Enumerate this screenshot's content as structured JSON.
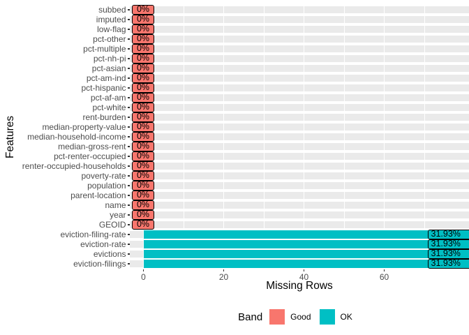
{
  "chart_data": {
    "type": "bar",
    "orientation": "horizontal",
    "xlabel": "Missing Rows",
    "ylabel": "Features",
    "x_ticks": [
      0,
      20,
      40,
      60
    ],
    "gridline_values": [
      0,
      10,
      20,
      30,
      40,
      50,
      60,
      70
    ],
    "xlim": [
      -3.6,
      81.1
    ],
    "grid": true,
    "legend": {
      "title": "Band",
      "position": "bottom",
      "entries": [
        {
          "label": "Good",
          "color": "#F8766D"
        },
        {
          "label": "OK",
          "color": "#00BFC4"
        }
      ]
    },
    "rows": [
      {
        "feature": "subbed",
        "band": "Good",
        "value": 0,
        "label": "0%"
      },
      {
        "feature": "imputed",
        "band": "Good",
        "value": 0,
        "label": "0%"
      },
      {
        "feature": "low-flag",
        "band": "Good",
        "value": 0,
        "label": "0%"
      },
      {
        "feature": "pct-other",
        "band": "Good",
        "value": 0,
        "label": "0%"
      },
      {
        "feature": "pct-multiple",
        "band": "Good",
        "value": 0,
        "label": "0%"
      },
      {
        "feature": "pct-nh-pi",
        "band": "Good",
        "value": 0,
        "label": "0%"
      },
      {
        "feature": "pct-asian",
        "band": "Good",
        "value": 0,
        "label": "0%"
      },
      {
        "feature": "pct-am-ind",
        "band": "Good",
        "value": 0,
        "label": "0%"
      },
      {
        "feature": "pct-hispanic",
        "band": "Good",
        "value": 0,
        "label": "0%"
      },
      {
        "feature": "pct-af-am",
        "band": "Good",
        "value": 0,
        "label": "0%"
      },
      {
        "feature": "pct-white",
        "band": "Good",
        "value": 0,
        "label": "0%"
      },
      {
        "feature": "rent-burden",
        "band": "Good",
        "value": 0,
        "label": "0%"
      },
      {
        "feature": "median-property-value",
        "band": "Good",
        "value": 0,
        "label": "0%"
      },
      {
        "feature": "median-household-income",
        "band": "Good",
        "value": 0,
        "label": "0%"
      },
      {
        "feature": "median-gross-rent",
        "band": "Good",
        "value": 0,
        "label": "0%"
      },
      {
        "feature": "pct-renter-occupied",
        "band": "Good",
        "value": 0,
        "label": "0%"
      },
      {
        "feature": "renter-occupied-households",
        "band": "Good",
        "value": 0,
        "label": "0%"
      },
      {
        "feature": "poverty-rate",
        "band": "Good",
        "value": 0,
        "label": "0%"
      },
      {
        "feature": "population",
        "band": "Good",
        "value": 0,
        "label": "0%"
      },
      {
        "feature": "parent-location",
        "band": "Good",
        "value": 0,
        "label": "0%"
      },
      {
        "feature": "name",
        "band": "Good",
        "value": 0,
        "label": "0%"
      },
      {
        "feature": "year",
        "band": "Good",
        "value": 0,
        "label": "0%"
      },
      {
        "feature": "GEOID",
        "band": "Good",
        "value": 0,
        "label": "0%"
      },
      {
        "feature": "eviction-filing-rate",
        "band": "OK",
        "value": 81,
        "label": "31.93%"
      },
      {
        "feature": "eviction-rate",
        "band": "OK",
        "value": 81,
        "label": "31.93%"
      },
      {
        "feature": "evictions",
        "band": "OK",
        "value": 81,
        "label": "31.93%"
      },
      {
        "feature": "eviction-filings",
        "band": "OK",
        "value": 81,
        "label": "31.93%"
      }
    ]
  },
  "colors": {
    "good": "#F8766D",
    "ok": "#00BFC4",
    "row_strip": "#EAEAEA",
    "gridline": "#FFFFFF",
    "tick_text": "#4D4D4D",
    "axis_title": "#000000",
    "label_border": "#000000",
    "background": "#FFFFFF"
  }
}
